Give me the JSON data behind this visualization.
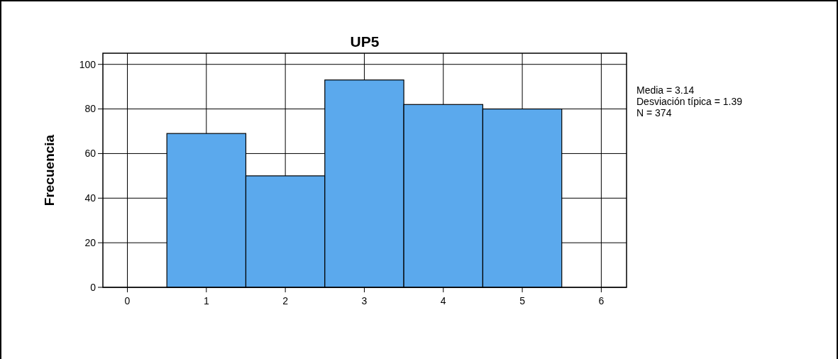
{
  "chart_data": {
    "type": "histogram",
    "title": "UP5",
    "ylabel": "Frecuencia",
    "bins": [
      0.5,
      1.5,
      2.5,
      3.5,
      4.5,
      5.5
    ],
    "values": [
      69,
      50,
      93,
      82,
      80
    ],
    "color": "#5ba9ed",
    "xlim": [
      -0.31,
      6.32
    ],
    "xticks": [
      0,
      1,
      2,
      3,
      4,
      5,
      6
    ],
    "ylim": [
      0,
      105
    ],
    "yticks": [
      0,
      20,
      40,
      60,
      80,
      100
    ],
    "grid": true,
    "annotations": [
      "Media = 3.14",
      "Desviación típica = 1.39",
      "N = 374"
    ]
  }
}
